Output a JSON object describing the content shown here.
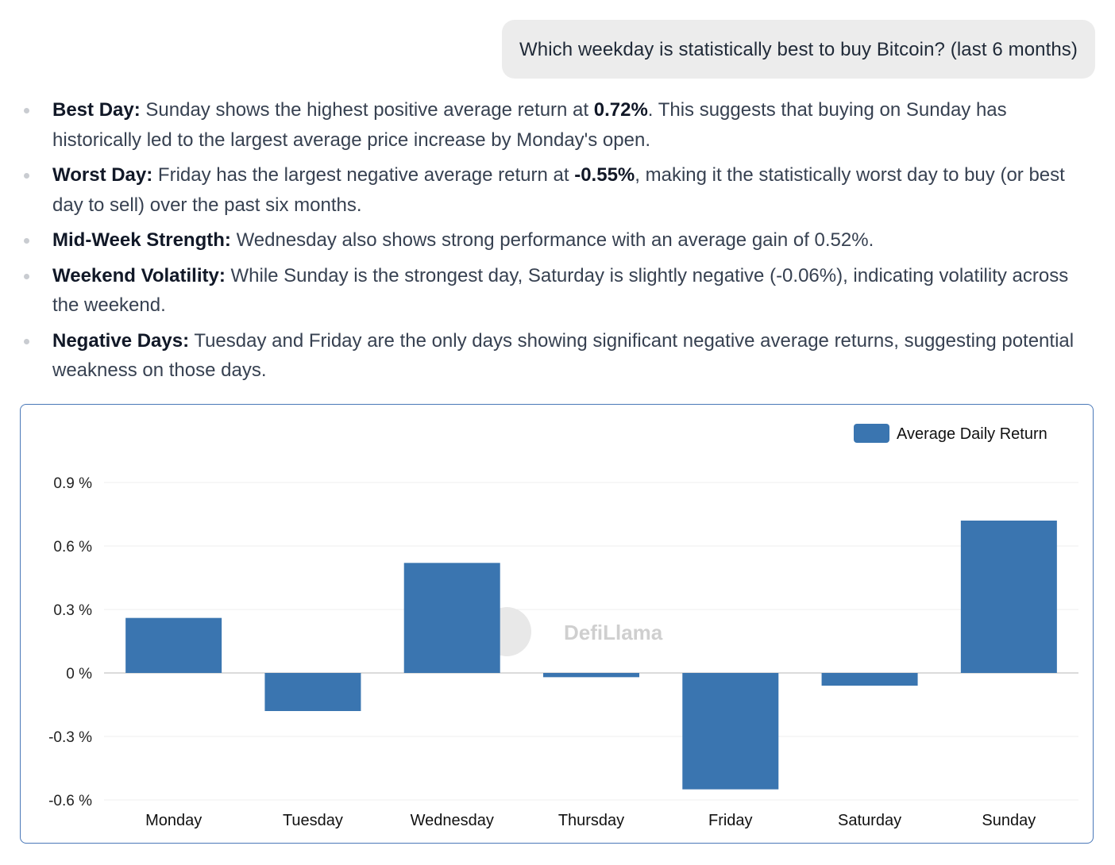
{
  "user_message": "Which weekday is statistically best to buy Bitcoin? (last 6 months)",
  "bullets": [
    {
      "title": "Best Day:",
      "segments": [
        {
          "text": " Sunday shows the highest positive average return at "
        },
        {
          "text": "0.72%",
          "bold": true
        },
        {
          "text": ". This suggests that buying on Sunday has historically led to the largest average price increase by Monday's open."
        }
      ]
    },
    {
      "title": "Worst Day:",
      "segments": [
        {
          "text": " Friday has the largest negative average return at "
        },
        {
          "text": "-0.55%",
          "bold": true
        },
        {
          "text": ", making it the statistically worst day to buy (or best day to sell) over the past six months."
        }
      ]
    },
    {
      "title": "Mid-Week Strength:",
      "segments": [
        {
          "text": " Wednesday also shows strong performance with an average gain of 0.52%."
        }
      ]
    },
    {
      "title": "Weekend Volatility:",
      "segments": [
        {
          "text": " While Sunday is the strongest day, Saturday is slightly negative (-0.06%), indicating volatility across the weekend."
        }
      ]
    },
    {
      "title": "Negative Days:",
      "segments": [
        {
          "text": " Tuesday and Friday are the only days showing significant negative average returns, suggesting potential weakness on those days."
        }
      ]
    }
  ],
  "watermark": "DefiLlama",
  "chart_data": {
    "type": "bar",
    "categories": [
      "Monday",
      "Tuesday",
      "Wednesday",
      "Thursday",
      "Friday",
      "Saturday",
      "Sunday"
    ],
    "series": [
      {
        "name": "Average Daily Return",
        "values": [
          0.26,
          -0.18,
          0.52,
          -0.02,
          -0.55,
          -0.06,
          0.72
        ],
        "color": "#3a75b0"
      }
    ],
    "yticks": [
      "0.9 %",
      "0.6 %",
      "0.3 %",
      "0 %",
      "-0.3 %",
      "-0.6 %"
    ],
    "ytick_values": [
      0.9,
      0.6,
      0.3,
      0,
      -0.3,
      -0.6
    ],
    "ylim": [
      -0.6,
      0.9
    ],
    "legend_position": "top-right",
    "grid": true
  }
}
